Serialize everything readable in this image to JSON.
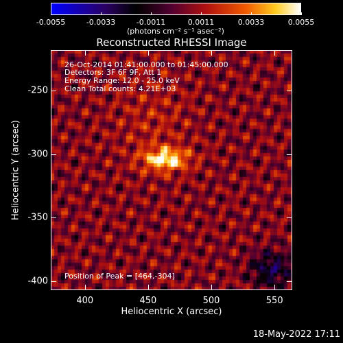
{
  "colorbar": {
    "tick_labels": [
      "-0.0055",
      "-0.0033",
      "-0.0011",
      "0.0011",
      "0.0033",
      "0.0055"
    ],
    "range": [
      -0.0055,
      0.0055
    ],
    "units": "(photons cm⁻² s⁻¹ asec⁻²)",
    "colors": [
      "#0000ff",
      "#000000",
      "#c81e00",
      "#ffffff"
    ]
  },
  "chart_data": {
    "type": "heatmap",
    "title": "Reconstructed RHESSI Image",
    "xlabel": "Heliocentric X (arcsec)",
    "ylabel": "Heliocentric Y (arcsec)",
    "xlim": [
      373,
      564
    ],
    "ylim": [
      -407,
      -218
    ],
    "xticks": [
      400,
      450,
      500,
      550
    ],
    "yticks": [
      -250,
      -300,
      -350,
      -400
    ],
    "peak": [
      464,
      -304
    ],
    "annotations": [
      "26-Oct-2014 01:41:00.000 to 01:45:00.000",
      "Detectors: 3F 6F 9F, Att 1",
      "Energy Range: 12.0 - 25.0 keV",
      "Clean     Total counts: 4.21E+03"
    ],
    "peak_label": "Position of Peak = [464,-304]"
  },
  "footer": {
    "timestamp": "18-May-2022 17:11"
  }
}
